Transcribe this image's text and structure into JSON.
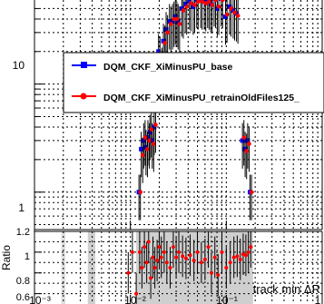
{
  "chart_data": [
    {
      "type": "scatter",
      "panel": "main",
      "ylabel": "",
      "log_x": true,
      "log_y": true,
      "xlim": [
        0.001,
        1
      ],
      "ylim": [
        0.45,
        60
      ],
      "y_tick_labels": [
        "1",
        "10"
      ],
      "grid": true,
      "legend_placement": "center",
      "series": [
        {
          "name": "DQM_CKF_XiMinusPU_base",
          "color": "#0000ff",
          "x": [
            0.0125,
            0.0132,
            0.014,
            0.0148,
            0.0155,
            0.0163,
            0.0172,
            0.018,
            0.019,
            0.02,
            0.021,
            0.0225,
            0.024,
            0.026,
            0.028,
            0.03,
            0.032,
            0.035,
            0.038,
            0.042,
            0.046,
            0.05,
            0.055,
            0.06,
            0.065,
            0.07,
            0.076,
            0.082,
            0.09,
            0.1,
            0.11,
            0.12,
            0.13,
            0.14,
            0.15,
            0.16,
            0.17,
            0.18
          ],
          "values": [
            1.0,
            2.5,
            3.0,
            2.6,
            3.2,
            3.6,
            3.0,
            4.0,
            13,
            20,
            14,
            25,
            32,
            38,
            38,
            42,
            38,
            50,
            55,
            58,
            52,
            60,
            60,
            58,
            60,
            55,
            62,
            50,
            62,
            42,
            52,
            48,
            45,
            12,
            3.0,
            2.5,
            3.0,
            1.0
          ]
        },
        {
          "name": "DQM_CKF_XiMinusPU_retrainOldFiles125_",
          "color": "#ff0000",
          "x": [
            0.0125,
            0.0132,
            0.014,
            0.0148,
            0.0155,
            0.0163,
            0.0172,
            0.018,
            0.019,
            0.02,
            0.021,
            0.0225,
            0.024,
            0.026,
            0.028,
            0.03,
            0.032,
            0.035,
            0.038,
            0.042,
            0.046,
            0.05,
            0.055,
            0.06,
            0.065,
            0.07,
            0.076,
            0.082,
            0.09,
            0.1,
            0.11,
            0.12,
            0.13,
            0.14,
            0.15,
            0.16,
            0.17,
            0.18
          ],
          "values": [
            1.0,
            2.2,
            3.2,
            2.5,
            3.0,
            3.8,
            2.8,
            4.2,
            12,
            19,
            15,
            24,
            30,
            36,
            40,
            40,
            36,
            48,
            52,
            56,
            54,
            58,
            58,
            56,
            58,
            54,
            60,
            52,
            60,
            44,
            50,
            46,
            43,
            11,
            3.2,
            2.4,
            2.8,
            1.0
          ]
        }
      ]
    },
    {
      "type": "scatter",
      "panel": "ratio",
      "xlabel": "track min ΔR",
      "ylabel": "Ratio",
      "log_x": true,
      "xlim": [
        0.001,
        1
      ],
      "ylim": [
        0.5,
        1.2
      ],
      "x_tick_labels": [
        "10⁻³",
        "10⁻²",
        "10⁻¹",
        "1"
      ],
      "y_tick_labels": [
        "0.6",
        "0.8",
        "1",
        "1.2"
      ],
      "grid": true,
      "series": [
        {
          "name": "ratio",
          "color": "#ff0000",
          "x": [
            0.0095,
            0.0105,
            0.0115,
            0.0125,
            0.0132,
            0.014,
            0.0148,
            0.0155,
            0.0163,
            0.0172,
            0.018,
            0.019,
            0.02,
            0.021,
            0.0225,
            0.024,
            0.026,
            0.028,
            0.03,
            0.032,
            0.035,
            0.038,
            0.042,
            0.046,
            0.05,
            0.055,
            0.06,
            0.065,
            0.07,
            0.076,
            0.082,
            0.09,
            0.1,
            0.11,
            0.12,
            0.13,
            0.14,
            0.15,
            0.16,
            0.17,
            0.18
          ],
          "values": [
            0.8,
            1.0,
            0.6,
            1.0,
            0.85,
            1.05,
            0.9,
            1.1,
            0.75,
            0.95,
            0.85,
            0.92,
            1.05,
            0.95,
            1.0,
            0.9,
            0.85,
            1.05,
            0.95,
            1.0,
            0.96,
            0.94,
            0.97,
            0.92,
            1.0,
            0.9,
            0.93,
            1.05,
            0.8,
            0.95,
            0.78,
            1.0,
            0.85,
            0.9,
            0.95,
            0.96,
            0.93,
            0.98,
            0.97,
            1.0,
            1.05
          ]
        }
      ]
    }
  ]
}
